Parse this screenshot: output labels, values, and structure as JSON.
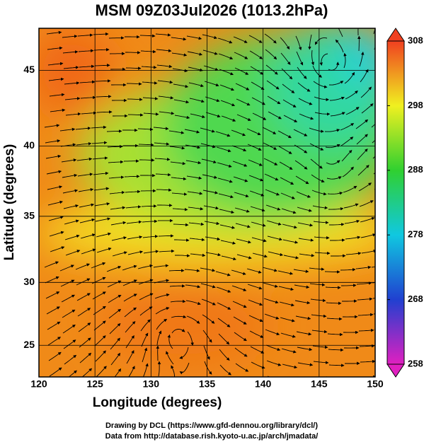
{
  "title": "MSM 09Z03Jul2026 (1013.2hPa)",
  "x_axis": {
    "label": "Longitude (degrees)",
    "ticks": [
      120,
      125,
      130,
      135,
      140,
      145,
      150
    ]
  },
  "y_axis": {
    "label": "Latitude  (degrees)",
    "ticks": [
      25,
      30,
      35,
      40,
      45
    ],
    "range": [
      22.4,
      47.6
    ]
  },
  "colorbar": {
    "ticks": [
      258,
      268,
      278,
      288,
      298,
      308
    ]
  },
  "footer": [
    "Drawing by DCL (https://www.gfd-dennou.org/library/dcl/)",
    "Data from http://database.rish.kyoto-u.ac.jp/arch/jmadata/"
  ]
}
